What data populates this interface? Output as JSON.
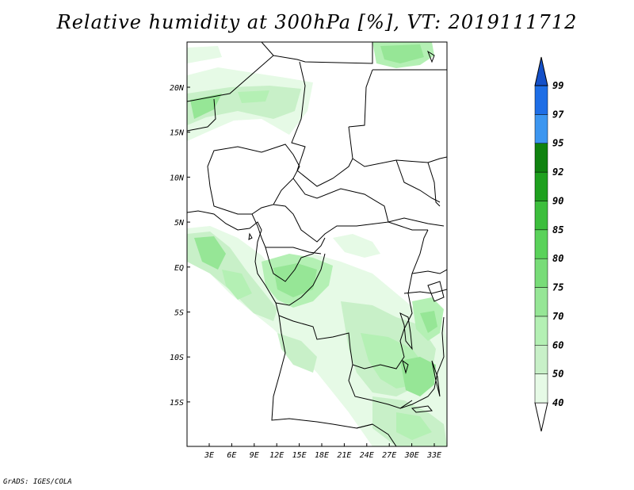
{
  "title": "Relative humidity at 300hPa [%], VT: 2019111712",
  "credit": "GrADS: IGES/COLA",
  "map": {
    "lat_labels": [
      "20N",
      "15N",
      "10N",
      "5N",
      "EQ",
      "5S",
      "10S",
      "15S"
    ],
    "lon_labels": [
      "3E",
      "6E",
      "9E",
      "12E",
      "15E",
      "18E",
      "21E",
      "24E",
      "27E",
      "30E",
      "33E"
    ]
  },
  "colorbar": {
    "levels": [
      "40",
      "50",
      "60",
      "70",
      "75",
      "80",
      "85",
      "90",
      "92",
      "95",
      "97",
      "99"
    ],
    "colors": [
      "#e6fae6",
      "#c8f0c8",
      "#b4f0b4",
      "#96e696",
      "#78dc78",
      "#5ad25a",
      "#3cbe3c",
      "#1ea01e",
      "#0f820f",
      "#3c96f0",
      "#1e6ee6",
      "#1450c8"
    ]
  }
}
